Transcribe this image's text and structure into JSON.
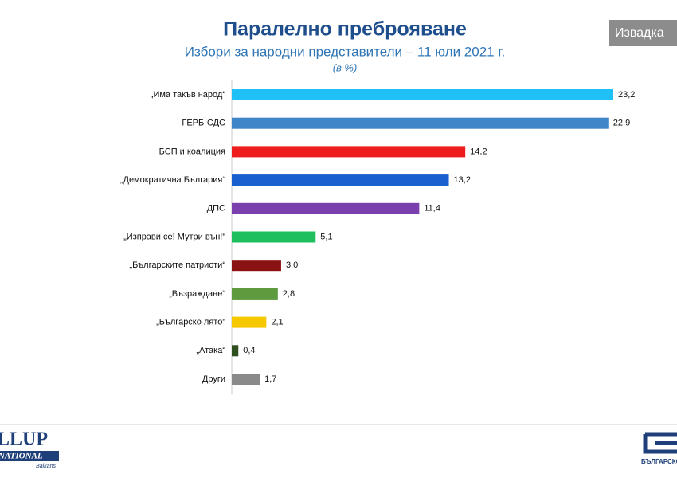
{
  "chart_data": {
    "type": "hbar",
    "title": "Паралелно преброяване",
    "subtitle": "Избори за народни представители – 11 юли 2021 г.",
    "unit_note": "(в %)",
    "categories": [
      "„Има такъв народ“",
      "ГЕРБ-СДС",
      "БСП и коалиция",
      "„Демократична България“",
      "ДПС",
      "„Изправи се! Мутри вън!“",
      "„Българските патриоти“",
      "„Възраждане“",
      "„Българско лято“",
      "„Атака“",
      "Други"
    ],
    "values": [
      23.2,
      22.9,
      14.2,
      13.2,
      11.4,
      5.1,
      3.0,
      2.8,
      2.1,
      0.4,
      1.7
    ],
    "value_labels": [
      "23,2",
      "22,9",
      "14,2",
      "13,2",
      "11,4",
      "5,1",
      "3,0",
      "2,8",
      "2,1",
      "0,4",
      "1,7"
    ],
    "colors": [
      "#1ec0f5",
      "#3f86c8",
      "#ee1c1c",
      "#1a5fd0",
      "#7b3fae",
      "#1fbf5f",
      "#8b1212",
      "#5e9a3e",
      "#f5c800",
      "#2f4f1f",
      "#8a8a8a"
    ]
  },
  "badge": "Извадка",
  "logo_left": {
    "name": "LLUP",
    "sub": "NATIONAL",
    "region": "Balkans"
  },
  "logo_right": "БЪЛГАРСКО"
}
